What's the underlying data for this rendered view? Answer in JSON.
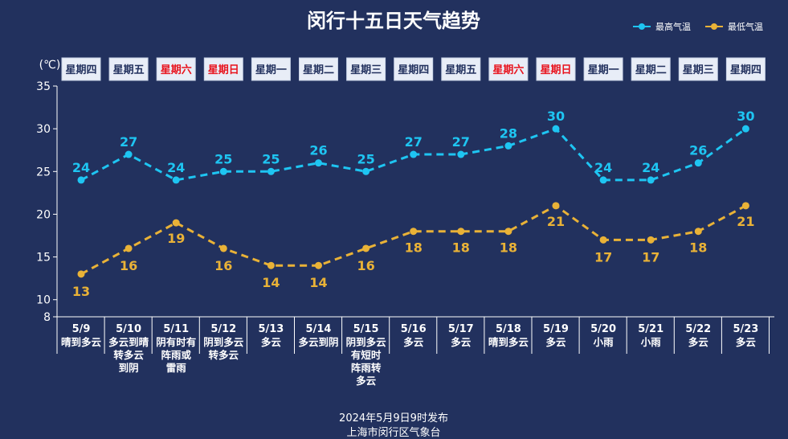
{
  "title": "闵行十五日天气趋势",
  "legend": {
    "high_label": "最高气温",
    "low_label": "最低气温",
    "position": "top-right"
  },
  "unit_label": "(℃)",
  "colors": {
    "background": "#22315e",
    "high": "#1ec5f2",
    "low": "#e9b237",
    "weekend": "#e8131d",
    "weekday_text": "#22315e",
    "weekday_box": "#e8edf7",
    "text": "#ffffff"
  },
  "weekdays": [
    "星期四",
    "星期五",
    "星期六",
    "星期日",
    "星期一",
    "星期二",
    "星期三",
    "星期四",
    "星期五",
    "星期六",
    "星期日",
    "星期一",
    "星期二",
    "星期三",
    "星期四"
  ],
  "weekend_flags": [
    false,
    false,
    true,
    true,
    false,
    false,
    false,
    false,
    false,
    true,
    true,
    false,
    false,
    false,
    false
  ],
  "weather": [
    [
      "晴到多云"
    ],
    [
      "多云到晴",
      "转多云",
      "到阴"
    ],
    [
      "阴有时有",
      "阵雨或",
      "雷雨"
    ],
    [
      "阴到多云",
      "转多云"
    ],
    [
      "多云"
    ],
    [
      "多云到阴"
    ],
    [
      "阴到多云",
      "有短时",
      "阵雨转",
      "多云"
    ],
    [
      "多云"
    ],
    [
      "多云"
    ],
    [
      "晴到多云"
    ],
    [
      "多云"
    ],
    [
      "小雨"
    ],
    [
      "小雨"
    ],
    [
      "多云"
    ],
    [
      "多云"
    ]
  ],
  "chart_data": {
    "type": "line",
    "categories": [
      "5/9",
      "5/10",
      "5/11",
      "5/12",
      "5/13",
      "5/14",
      "5/15",
      "5/16",
      "5/17",
      "5/18",
      "5/19",
      "5/20",
      "5/21",
      "5/22",
      "5/23"
    ],
    "series": [
      {
        "name": "最高气温",
        "values": [
          24,
          27,
          24,
          25,
          25,
          26,
          25,
          27,
          27,
          28,
          30,
          24,
          24,
          26,
          30
        ]
      },
      {
        "name": "最低气温",
        "values": [
          13,
          16,
          19,
          16,
          14,
          14,
          16,
          18,
          18,
          18,
          21,
          17,
          17,
          18,
          21
        ]
      }
    ],
    "yticks": [
      8,
      10,
      15,
      20,
      25,
      30,
      35
    ],
    "ylim": [
      8,
      35
    ],
    "ylabel": "(℃)",
    "grid": false
  },
  "footer": {
    "line1": "2024年5月9日9时发布",
    "line2": "上海市闵行区气象台"
  }
}
